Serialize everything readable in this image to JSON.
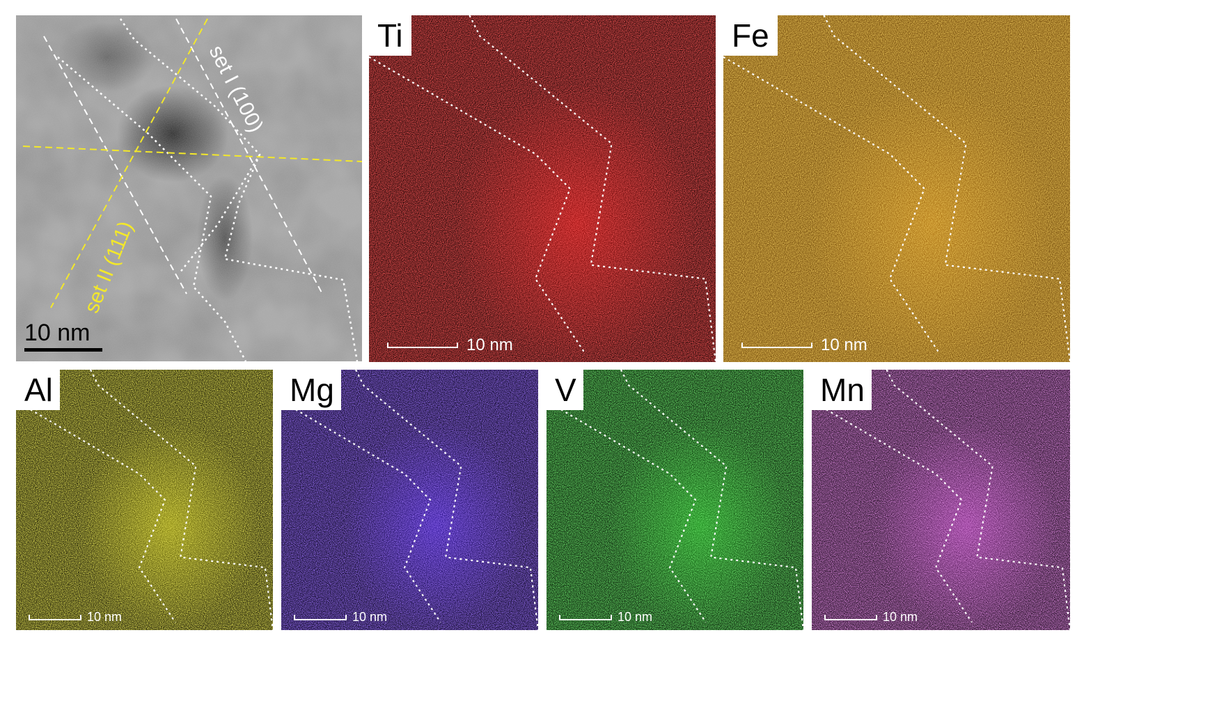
{
  "stem_panel": {
    "scale_label": "10 nm",
    "annotations": {
      "set_1": "set I (100)",
      "set_2": "set II (111)"
    },
    "colors": {
      "set_1": "#ffffff",
      "set_2": "#f3e82a"
    }
  },
  "eds_maps": [
    {
      "id": "ti",
      "element": "Ti",
      "color": "#ff1a1a",
      "scale_label": "10 nm"
    },
    {
      "id": "fe",
      "element": "Fe",
      "color": "#e0981c",
      "scale_label": "10 nm"
    },
    {
      "id": "al",
      "element": "Al",
      "color": "#d6d21a",
      "scale_label": "10 nm"
    },
    {
      "id": "mg",
      "element": "Mg",
      "color": "#5a2dff",
      "scale_label": "10 nm"
    },
    {
      "id": "v",
      "element": "V",
      "color": "#2bd62b",
      "scale_label": "10 nm"
    },
    {
      "id": "mn",
      "element": "Mn",
      "color": "#d24ad8",
      "scale_label": "10 nm"
    }
  ]
}
